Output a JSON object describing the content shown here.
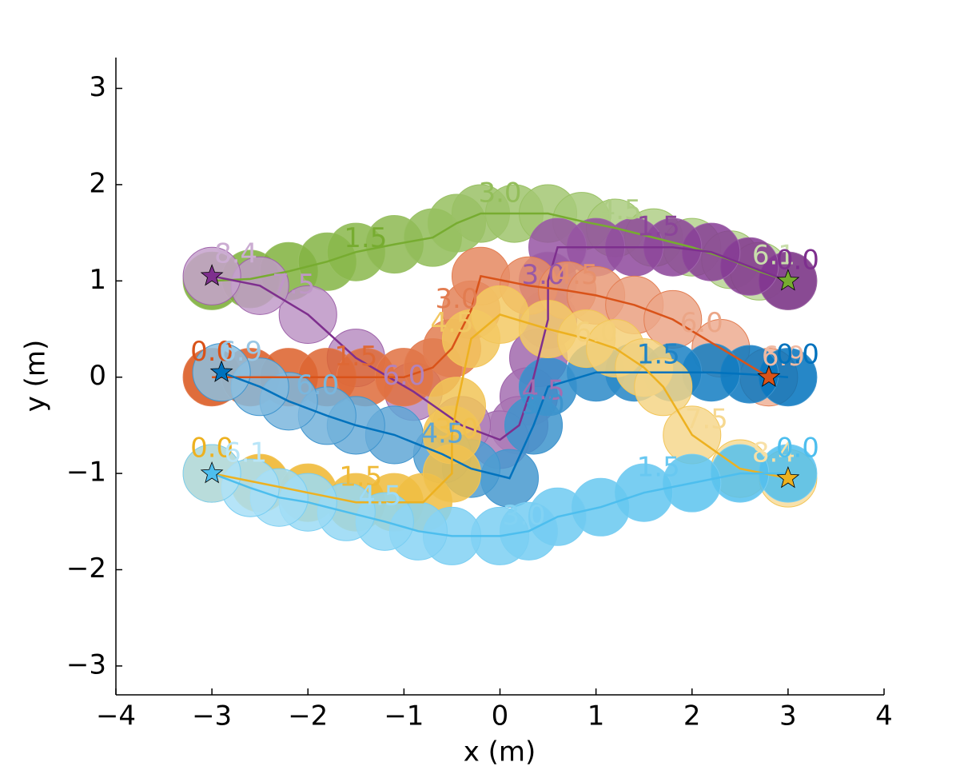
{
  "chart_data": {
    "type": "trajectory",
    "x_label": "x (m)",
    "y_label": "y (m)",
    "xlim": [
      -4,
      4
    ],
    "ylim": [
      -3.3,
      3.32
    ],
    "xticks": [
      {
        "value": -4,
        "label": "−4"
      },
      {
        "value": -3,
        "label": "−3"
      },
      {
        "value": -2,
        "label": "−2"
      },
      {
        "value": -1,
        "label": "−1"
      },
      0,
      1,
      2,
      3,
      4
    ],
    "yticks": [
      {
        "value": -3,
        "label": "−3"
      },
      {
        "value": -2,
        "label": "−2"
      },
      {
        "value": -1,
        "label": "−1"
      },
      0,
      1,
      2,
      3
    ],
    "radius": 0.3,
    "series": [
      {
        "color": "#77ac30",
        "x": [
          -3,
          -2.6,
          -2.2,
          -1.8,
          -1.5,
          -1.1,
          -0.7,
          -0.45,
          -0.2,
          0.15,
          0.5,
          0.85,
          1.2,
          1.6,
          2,
          2.4,
          2.7,
          3
        ],
        "y": [
          1,
          1.02,
          1.1,
          1.2,
          1.3,
          1.38,
          1.45,
          1.6,
          1.7,
          1.7,
          1.7,
          1.62,
          1.55,
          1.45,
          1.35,
          1.22,
          1.1,
          1
        ],
        "labels": [
          {
            "text": "1.5",
            "x": -1.4,
            "y": 1.43
          },
          {
            "text": "3.0",
            "x": 0,
            "y": 1.9
          },
          {
            "text": "4.5",
            "x": 1.25,
            "y": 1.72
          },
          {
            "text": "6.1",
            "x": 2.85,
            "y": 1.25
          }
        ]
      },
      {
        "color": "#7e2f8e",
        "x": [
          3,
          2.6,
          2.2,
          1.8,
          1.4,
          1,
          0.6,
          0.5,
          0.5,
          0.4,
          0.3,
          0.2,
          0,
          -0.4,
          -0.9,
          -1.5,
          -2,
          -2.5,
          -3
        ],
        "y": [
          1,
          1.15,
          1.3,
          1.35,
          1.35,
          1.35,
          1.35,
          1,
          0.6,
          0.2,
          -0.2,
          -0.5,
          -0.65,
          -0.5,
          -0.15,
          0.2,
          0.65,
          0.95,
          1.05
        ],
        "labels": [
          {
            "text": "0.0",
            "x": 3.1,
            "y": 1.2
          },
          {
            "text": "1.5",
            "x": 1.65,
            "y": 1.55
          },
          {
            "text": "3.0",
            "x": 0.45,
            "y": 1.05
          },
          {
            "text": "4.5",
            "x": 0.45,
            "y": -0.15
          },
          {
            "text": "6.0",
            "x": -1,
            "y": 0
          },
          {
            "text": "7.5",
            "x": -2.15,
            "y": 0.95
          },
          {
            "text": "8.4",
            "x": -2.75,
            "y": 1.27
          }
        ]
      },
      {
        "color": "#d95319",
        "x": [
          -3,
          -2.6,
          -2.2,
          -1.8,
          -1.4,
          -1,
          -0.7,
          -0.5,
          -0.3,
          -0.2,
          0.3,
          0.7,
          1,
          1.4,
          1.8,
          2.3,
          2.8
        ],
        "y": [
          0,
          0,
          0,
          0,
          0,
          0,
          0.1,
          0.3,
          0.7,
          1.05,
          0.95,
          0.9,
          0.85,
          0.75,
          0.6,
          0.3,
          0
        ],
        "labels": [
          {
            "text": "0.0",
            "x": -3,
            "y": 0.25
          },
          {
            "text": "1.5",
            "x": -1.5,
            "y": 0.2
          },
          {
            "text": "3.0",
            "x": -0.45,
            "y": 0.8
          },
          {
            "text": "4.5",
            "x": 0.8,
            "y": 1.05
          },
          {
            "text": "6.0",
            "x": 2.1,
            "y": 0.55
          },
          {
            "text": "6.9",
            "x": 2.95,
            "y": 0.2
          }
        ]
      },
      {
        "color": "#0072bd",
        "x": [
          3,
          2.6,
          2.2,
          1.8,
          1.4,
          1,
          0.5,
          0.35,
          0.1,
          -0.3,
          -0.6,
          -1.1,
          -1.5,
          -1.8,
          -2.2,
          -2.5,
          -2.9
        ],
        "y": [
          0,
          0.03,
          0.05,
          0.05,
          0.05,
          0.05,
          -0.1,
          -0.5,
          -1.05,
          -0.95,
          -0.8,
          -0.6,
          -0.5,
          -0.4,
          -0.25,
          -0.1,
          0.05
        ],
        "labels": [
          {
            "text": "0.0",
            "x": 3.1,
            "y": 0.22
          },
          {
            "text": "1.5",
            "x": 1.65,
            "y": 0.22
          },
          {
            "text": "3.0",
            "x": 0.45,
            "y": -0.3
          },
          {
            "text": "4.5",
            "x": -0.6,
            "y": -0.6
          },
          {
            "text": "6.0",
            "x": -1.9,
            "y": -0.1
          },
          {
            "text": "6.9",
            "x": -2.7,
            "y": 0.25
          }
        ]
      },
      {
        "color": "#edb120",
        "x": [
          -3,
          -2.5,
          -2,
          -1.5,
          -1.1,
          -0.8,
          -0.5,
          -0.5,
          -0.45,
          -0.3,
          0,
          0.5,
          0.9,
          1.2,
          1.5,
          1.7,
          2,
          2.5,
          3
        ],
        "y": [
          -1,
          -1.1,
          -1.2,
          -1.3,
          -1.3,
          -1.3,
          -1,
          -0.6,
          -0.3,
          0.4,
          0.65,
          0.5,
          0.4,
          0.3,
          0.1,
          -0.1,
          -0.6,
          -0.95,
          -1.05
        ],
        "labels": [
          {
            "text": "0.0",
            "x": -3,
            "y": -0.75
          },
          {
            "text": "1.5",
            "x": -1.45,
            "y": -1.05
          },
          {
            "text": "3.0",
            "x": -0.45,
            "y": -0.55
          },
          {
            "text": "4.5",
            "x": -0.5,
            "y": 0.55
          },
          {
            "text": "6.0",
            "x": 1,
            "y": 0.45
          },
          {
            "text": "7.5",
            "x": 2.15,
            "y": -0.45
          },
          {
            "text": "8.4",
            "x": 2.85,
            "y": -0.8
          }
        ]
      },
      {
        "color": "#4dbeee",
        "x": [
          3,
          2.5,
          2,
          1.5,
          1.05,
          0.6,
          0.3,
          0,
          -0.5,
          -0.85,
          -1.2,
          -1.6,
          -2,
          -2.3,
          -2.6,
          -3
        ],
        "y": [
          -1,
          -1,
          -1.1,
          -1.2,
          -1.35,
          -1.45,
          -1.6,
          -1.65,
          -1.65,
          -1.6,
          -1.5,
          -1.4,
          -1.3,
          -1.25,
          -1.15,
          -1
        ],
        "labels": [
          {
            "text": "0.0",
            "x": 3.1,
            "y": -0.75
          },
          {
            "text": "1.5",
            "x": 1.65,
            "y": -0.95
          },
          {
            "text": "3.0",
            "x": 0.25,
            "y": -1.45
          },
          {
            "text": "4.5",
            "x": -1.25,
            "y": -1.25
          },
          {
            "text": "6.1",
            "x": -2.65,
            "y": -0.8
          }
        ]
      }
    ]
  }
}
